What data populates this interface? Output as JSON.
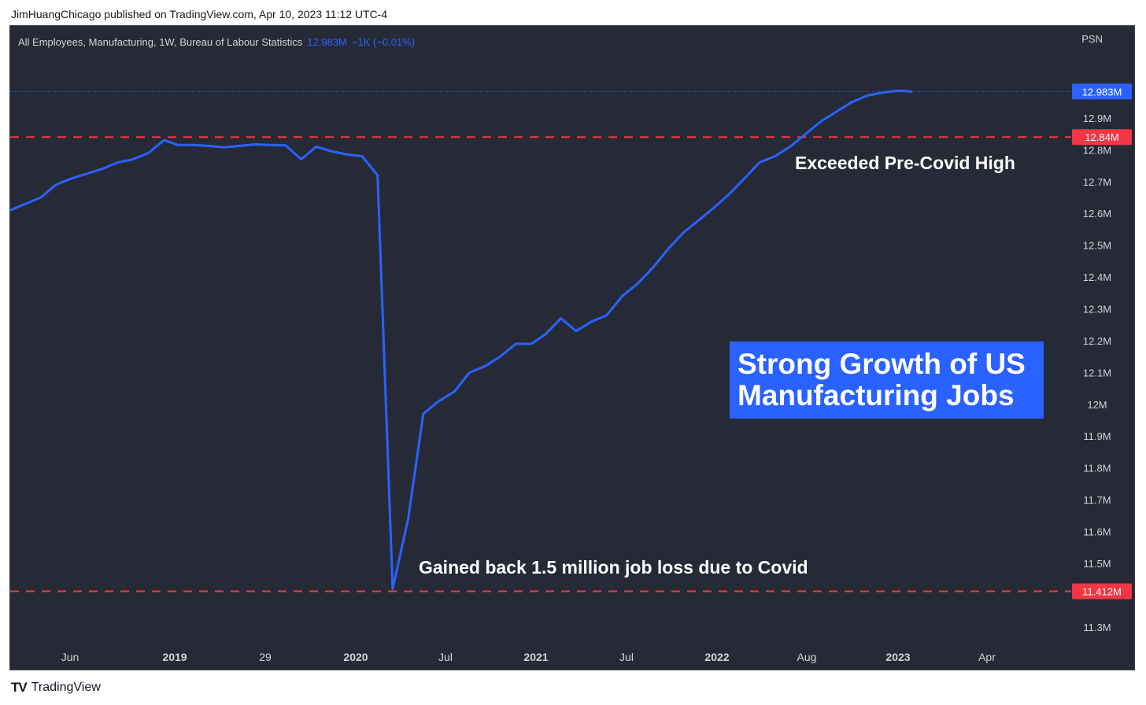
{
  "header": {
    "published_text": "JimHuangChicago published on TradingView.com, Apr 10, 2023 11:12 UTC-4"
  },
  "legend": {
    "series_name": "All Employees, Manufacturing, 1W, Bureau of Labour Statistics",
    "last_value": "12.983M",
    "change": "−1K (−0.01%)"
  },
  "scale_label": "PSN",
  "colors": {
    "background": "#262a36",
    "line": "#2962ff",
    "marker_line": "#f23645",
    "text": "#d1d4dc",
    "annotation_box": "#2962ff"
  },
  "annotations": {
    "title_line1": "Strong Growth of US",
    "title_line2": "Manufacturing Jobs",
    "pre_covid_note": "Exceeded Pre-Covid High",
    "covid_note": "Gained back 1.5 million job loss due to Covid"
  },
  "brand": {
    "name": "TradingView",
    "icon": "tradingview-logo-icon"
  },
  "chart_data": {
    "type": "line",
    "series": [
      {
        "name": "All Employees, Manufacturing",
        "x": [
          "2018-04",
          "2018-05",
          "2018-06",
          "2018-07",
          "2018-08",
          "2018-09",
          "2018-10",
          "2018-11",
          "2018-12",
          "2019-01",
          "2019-02",
          "2019-03",
          "2019-04",
          "2019-05",
          "2019-06",
          "2019-07",
          "2019-08",
          "2019-09",
          "2019-10",
          "2019-11",
          "2019-12",
          "2020-01",
          "2020-02",
          "2020-03",
          "2020-04",
          "2020-05",
          "2020-06",
          "2020-07",
          "2020-08",
          "2020-09",
          "2020-10",
          "2020-11",
          "2020-12",
          "2021-01",
          "2021-02",
          "2021-03",
          "2021-04",
          "2021-05",
          "2021-06",
          "2021-07",
          "2021-08",
          "2021-09",
          "2021-10",
          "2021-11",
          "2021-12",
          "2022-01",
          "2022-02",
          "2022-03",
          "2022-04",
          "2022-05",
          "2022-06",
          "2022-07",
          "2022-08",
          "2022-09",
          "2022-10",
          "2022-11",
          "2022-12",
          "2023-01",
          "2023-02",
          "2023-03"
        ],
        "values": [
          12.61,
          12.63,
          12.65,
          12.69,
          12.71,
          12.725,
          12.74,
          12.76,
          12.77,
          12.79,
          12.83,
          12.815,
          12.815,
          12.812,
          12.808,
          12.812,
          12.817,
          12.815,
          12.814,
          12.77,
          12.81,
          12.795,
          12.785,
          12.78,
          12.72,
          11.42,
          11.64,
          11.97,
          12.01,
          12.04,
          12.1,
          12.12,
          12.15,
          12.19,
          12.19,
          12.22,
          12.27,
          12.23,
          12.26,
          12.28,
          12.34,
          12.38,
          12.43,
          12.49,
          12.54,
          12.58,
          12.62,
          12.66,
          12.71,
          12.76,
          12.78,
          12.81,
          12.85,
          12.89,
          12.92,
          12.95,
          12.97,
          12.98,
          12.986,
          12.983
        ]
      }
    ],
    "x_tick_labels": [
      "Jun",
      "2019",
      "29",
      "2020",
      "Jul",
      "2021",
      "Jul",
      "2022",
      "Aug",
      "2023",
      "Apr"
    ],
    "y_ticks": [
      11.3,
      11.5,
      11.6,
      11.7,
      11.8,
      11.9,
      12.0,
      12.1,
      12.2,
      12.3,
      12.4,
      12.5,
      12.6,
      12.7,
      12.8,
      12.9
    ],
    "y_tick_labels": [
      "11.3M",
      "11.5M",
      "11.6M",
      "11.7M",
      "11.8M",
      "11.9M",
      "12M",
      "12.1M",
      "12.2M",
      "12.3M",
      "12.4M",
      "12.5M",
      "12.6M",
      "12.7M",
      "12.8M",
      "12.9M"
    ],
    "ylim": [
      11.25,
      13.12
    ],
    "horizontal_lines": [
      {
        "value": 12.84,
        "label": "12.84M",
        "style": "dashed",
        "color": "#f23645"
      },
      {
        "value": 11.412,
        "label": "11.412M",
        "style": "dashed",
        "color": "#f23645"
      }
    ],
    "last_price_label": "12.983M",
    "grid": false
  }
}
